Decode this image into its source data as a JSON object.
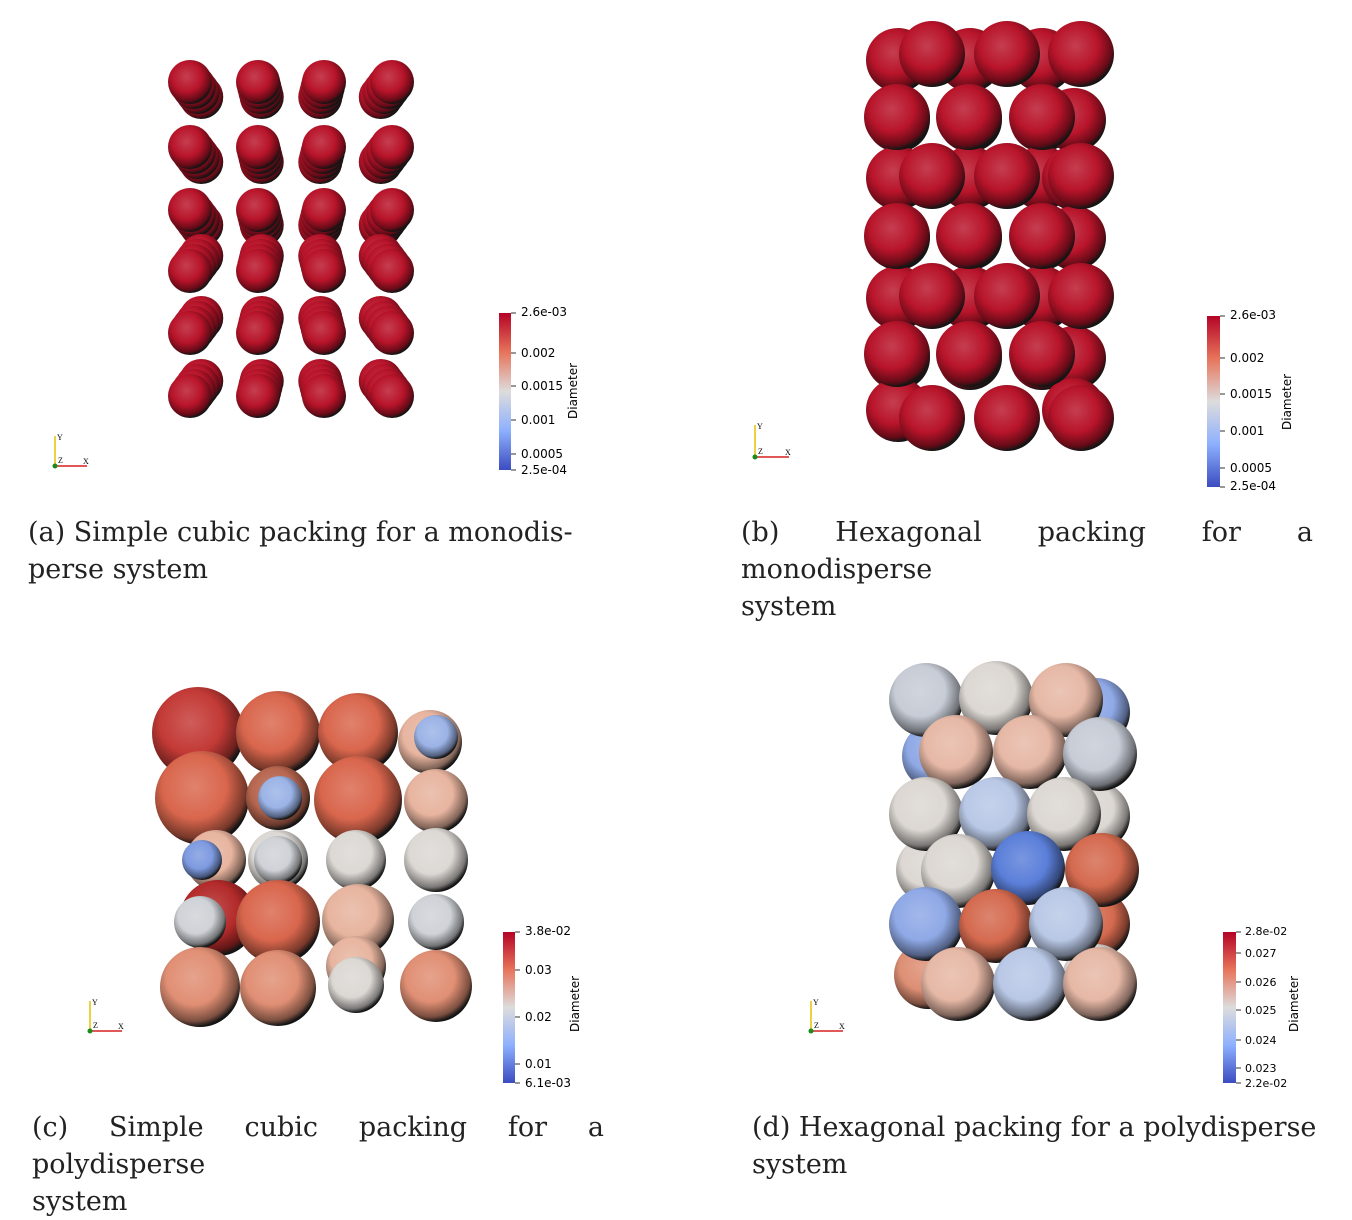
{
  "panels": [
    {
      "id": "a",
      "caption": "(a) Simple cubic packing for a monodis- perse system",
      "caption_line1": "(a) Simple cubic packing for a monodis-",
      "caption_line2": "perse system",
      "colorbar": {
        "title": "Diameter",
        "min_label": "2.5e-04",
        "max_label": "2.6e-03",
        "ticks": [
          "0.002",
          "0.0015",
          "0.001",
          "0.0005"
        ]
      },
      "axes": {
        "y": "Y",
        "z": "Z",
        "x": "X"
      },
      "particle_colors": "monodisperse red"
    },
    {
      "id": "b",
      "caption_line1": "(b) Hexagonal packing for a monodisperse",
      "caption_line2": "system",
      "colorbar": {
        "title": "Diameter",
        "min_label": "2.5e-04",
        "max_label": "2.6e-03",
        "ticks": [
          "0.002",
          "0.0015",
          "0.001",
          "0.0005"
        ]
      },
      "axes": {
        "y": "Y",
        "z": "Z",
        "x": "X"
      }
    },
    {
      "id": "c",
      "caption_line1": "(c) Simple cubic packing for a polydisperse",
      "caption_line2": "system",
      "colorbar": {
        "title": "Diameter",
        "min_label": "6.1e-03",
        "max_label": "3.8e-02",
        "ticks": [
          "0.03",
          "0.02",
          "0.01"
        ]
      },
      "axes": {
        "y": "Y",
        "z": "Z",
        "x": "X"
      }
    },
    {
      "id": "d",
      "caption_line1": "(d) Hexagonal packing for a polydisperse",
      "caption_line2": "system",
      "colorbar": {
        "title": "Diameter",
        "min_label": "2.2e-02",
        "max_label": "2.8e-02",
        "ticks": [
          "0.027",
          "0.026",
          "0.025",
          "0.024",
          "0.023"
        ]
      },
      "axes": {
        "y": "Y",
        "z": "Z",
        "x": "X"
      }
    }
  ],
  "colors": {
    "red": "#b40426",
    "high": "#d0473d",
    "mid": "#dddcdc",
    "low": "#4f6fd9",
    "blue": "#3b4cc0"
  }
}
